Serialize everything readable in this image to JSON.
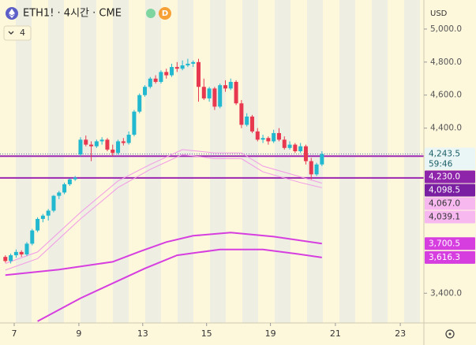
{
  "chart_data": {
    "type": "candlestick",
    "title": "ETH1! · 4시간 · CME",
    "badge": "D",
    "indicators_count": 4,
    "currency": "USD",
    "up_color": "#22b8cf",
    "down_color": "#e8384f",
    "xlim": [
      -1,
      78
    ],
    "xticks": [
      {
        "value": 1.65,
        "label": "7"
      },
      {
        "value": 13.7,
        "label": "9"
      },
      {
        "value": 25.6,
        "label": "13"
      },
      {
        "value": 37.5,
        "label": "15"
      },
      {
        "value": 49.4,
        "label": "19"
      },
      {
        "value": 61.5,
        "label": "21"
      },
      {
        "value": 73.6,
        "label": "23"
      }
    ],
    "ylim": [
      3220,
      5176
    ],
    "yticks": [
      {
        "value": 5000,
        "label": "5,000.0"
      },
      {
        "value": 4800,
        "label": "4,800.0"
      },
      {
        "value": 4600,
        "label": "4,600.0"
      },
      {
        "value": 4400,
        "label": "4,400.0"
      },
      {
        "value": 3400,
        "label": "3,400.0"
      }
    ],
    "ohlc": [
      [
        3620,
        3630,
        3585,
        3595
      ],
      [
        3595,
        3640,
        3580,
        3630
      ],
      [
        3630,
        3665,
        3615,
        3650
      ],
      [
        3650,
        3660,
        3620,
        3635
      ],
      [
        3635,
        3710,
        3625,
        3700
      ],
      [
        3700,
        3790,
        3690,
        3780
      ],
      [
        3780,
        3860,
        3770,
        3850
      ],
      [
        3850,
        3880,
        3830,
        3870
      ],
      [
        3870,
        3910,
        3840,
        3900
      ],
      [
        3900,
        3995,
        3890,
        3990
      ],
      [
        3990,
        4020,
        3970,
        4010
      ],
      [
        4010,
        4070,
        4000,
        4060
      ],
      [
        4060,
        4095,
        4050,
        4090
      ],
      [
        4090,
        4110,
        4080,
        4100
      ],
      [
        4240,
        4345,
        4230,
        4330
      ],
      [
        4330,
        4355,
        4290,
        4300
      ],
      [
        4300,
        4320,
        4200,
        4290
      ],
      [
        4290,
        4330,
        4280,
        4320
      ],
      [
        4320,
        4345,
        4300,
        4330
      ],
      [
        4330,
        4340,
        4260,
        4270
      ],
      [
        4270,
        4300,
        4230,
        4250
      ],
      [
        4250,
        4330,
        4240,
        4320
      ],
      [
        4320,
        4340,
        4295,
        4310
      ],
      [
        4310,
        4380,
        4300,
        4360
      ],
      [
        4360,
        4510,
        4350,
        4500
      ],
      [
        4500,
        4610,
        4490,
        4600
      ],
      [
        4600,
        4660,
        4590,
        4650
      ],
      [
        4650,
        4710,
        4640,
        4700
      ],
      [
        4700,
        4720,
        4670,
        4680
      ],
      [
        4680,
        4750,
        4670,
        4740
      ],
      [
        4740,
        4760,
        4700,
        4720
      ],
      [
        4720,
        4790,
        4710,
        4770
      ],
      [
        4770,
        4800,
        4740,
        4760
      ],
      [
        4760,
        4810,
        4750,
        4780
      ],
      [
        4780,
        4820,
        4770,
        4790
      ],
      [
        4790,
        4810,
        4770,
        4800
      ],
      [
        4800,
        4820,
        4560,
        4650
      ],
      [
        4650,
        4700,
        4570,
        4580
      ],
      [
        4580,
        4650,
        4560,
        4640
      ],
      [
        4640,
        4650,
        4510,
        4530
      ],
      [
        4530,
        4670,
        4520,
        4660
      ],
      [
        4660,
        4690,
        4620,
        4640
      ],
      [
        4640,
        4700,
        4630,
        4680
      ],
      [
        4680,
        4690,
        4540,
        4550
      ],
      [
        4550,
        4570,
        4400,
        4420
      ],
      [
        4420,
        4490,
        4410,
        4470
      ],
      [
        4470,
        4480,
        4370,
        4380
      ],
      [
        4380,
        4400,
        4320,
        4330
      ],
      [
        4330,
        4360,
        4310,
        4340
      ],
      [
        4340,
        4350,
        4300,
        4320
      ],
      [
        4320,
        4390,
        4310,
        4370
      ],
      [
        4370,
        4400,
        4320,
        4330
      ],
      [
        4330,
        4350,
        4270,
        4280
      ],
      [
        4280,
        4320,
        4270,
        4300
      ],
      [
        4300,
        4310,
        4250,
        4260
      ],
      [
        4260,
        4310,
        4250,
        4290
      ],
      [
        4290,
        4300,
        4180,
        4200
      ],
      [
        4200,
        4220,
        4090,
        4120
      ],
      [
        4120,
        4190,
        4110,
        4180
      ],
      [
        4180,
        4260,
        4170,
        4243.5
      ]
    ],
    "lines": [
      {
        "color": "#f29ae6",
        "width": 1,
        "x": [
          0,
          6,
          14,
          21,
          27,
          33,
          39,
          44,
          48,
          55,
          59
        ],
        "values": [
          3580,
          3650,
          3890,
          4080,
          4180,
          4270,
          4250,
          4250,
          4170,
          4105,
          4067
        ]
      },
      {
        "color": "#f29ae6",
        "width": 1,
        "x": [
          0,
          6,
          14,
          21,
          27,
          33,
          39,
          44,
          48,
          55,
          59
        ],
        "values": [
          3540,
          3610,
          3850,
          4040,
          4150,
          4240,
          4215,
          4215,
          4135,
          4070,
          4039.1
        ]
      },
      {
        "color": "#d63ee0",
        "width": 2,
        "x": [
          0,
          10,
          20,
          25,
          30,
          35,
          42,
          50,
          59
        ],
        "values": [
          3510,
          3543,
          3590,
          3652,
          3710,
          3748,
          3767,
          3743,
          3700.5
        ]
      },
      {
        "color": "#d63ee0",
        "width": 2,
        "x": [
          6,
          14,
          20,
          26,
          32,
          40,
          48,
          54,
          59
        ],
        "values": [
          3230,
          3370,
          3460,
          3550,
          3630,
          3665,
          3665,
          3640,
          3616.3
        ]
      }
    ],
    "hlines": [
      {
        "value": 4230,
        "color": "#9c27b0"
      },
      {
        "value": 4098.5,
        "color": "#9c27b0"
      }
    ],
    "last_price": 4243.5,
    "price_labels": [
      {
        "value": 4243.5,
        "label": "4,243.5",
        "sublabel": "59:46",
        "bg": "#e9f6f5",
        "color": "#1a5d66"
      },
      {
        "value": 4230,
        "label": "4,230.0",
        "bg": "#8e24aa",
        "color": "#ffffff"
      },
      {
        "value": 4098.5,
        "label": "4,098.5",
        "bg": "#7b1fa2",
        "color": "#ffffff"
      },
      {
        "value": 4067,
        "label": "4,067.0",
        "bg": "#f6b8ef",
        "color": "#333333"
      },
      {
        "value": 4039.1,
        "label": "4,039.1",
        "bg": "#f6b8ef",
        "color": "#333333"
      },
      {
        "value": 3700.5,
        "label": "3,700.5",
        "bg": "#d63ee0",
        "color": "#ffffff"
      },
      {
        "value": 3616.3,
        "label": "3,616.3",
        "bg": "#d63ee0",
        "color": "#ffffff"
      }
    ]
  }
}
